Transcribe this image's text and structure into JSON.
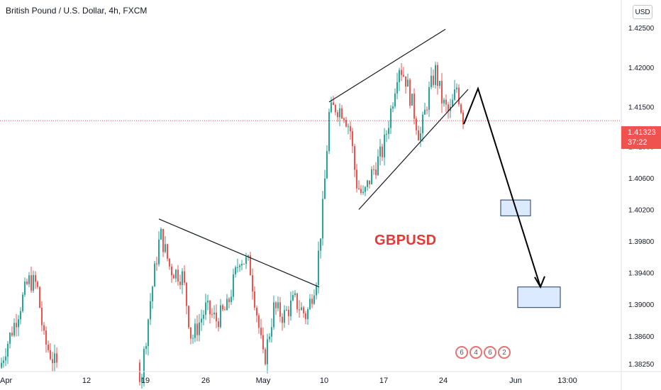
{
  "header": {
    "symbol_title": "British Pound / U.S. Dollar, 4h, FXCM"
  },
  "currency_badge": "USD",
  "last_price": {
    "value": "1.41323",
    "countdown": "37:22",
    "color": "#ef5350"
  },
  "annotation_label": "GBPUSD",
  "economic_events": [
    "6",
    "4",
    "6",
    "2"
  ],
  "colors": {
    "up": "#26a69a",
    "down": "#ef5350",
    "annotation": "#e53935",
    "target_fill": "#dbeafe",
    "target_border": "#1e3a5f"
  },
  "chart_data": {
    "type": "candlestick",
    "symbol": "GBPUSD",
    "timeframe": "4h",
    "y_ticks": [
      "1.42500",
      "1.42000",
      "1.41500",
      "1.41000",
      "1.40600",
      "1.40200",
      "1.39800",
      "1.39400",
      "1.39000",
      "1.38600",
      "1.38250"
    ],
    "x_ticks": [
      "Apr",
      "12",
      "19",
      "26",
      "May",
      "10",
      "17",
      "24",
      "Jun",
      "13:00"
    ],
    "ylim": [
      1.3815,
      1.4285
    ],
    "last_close": 1.41323,
    "close_series": [
      {
        "t": 0,
        "c": 1.382
      },
      {
        "t": 8,
        "c": 1.3845
      },
      {
        "t": 22,
        "c": 1.388
      },
      {
        "t": 40,
        "c": 1.393
      },
      {
        "t": 52,
        "c": 1.3925
      },
      {
        "t": 62,
        "c": 1.3855
      },
      {
        "t": 80,
        "c": 1.382
      },
      {
        "t": 120,
        "c": 1.379
      },
      {
        "t": 200,
        "c": 1.3815
      },
      {
        "t": 212,
        "c": 1.3905
      },
      {
        "t": 226,
        "c": 1.399
      },
      {
        "t": 240,
        "c": 1.3945
      },
      {
        "t": 258,
        "c": 1.3935
      },
      {
        "t": 270,
        "c": 1.3855
      },
      {
        "t": 290,
        "c": 1.3895
      },
      {
        "t": 305,
        "c": 1.388
      },
      {
        "t": 320,
        "c": 1.3895
      },
      {
        "t": 338,
        "c": 1.396
      },
      {
        "t": 352,
        "c": 1.395
      },
      {
        "t": 362,
        "c": 1.389
      },
      {
        "t": 372,
        "c": 1.3825
      },
      {
        "t": 386,
        "c": 1.3895
      },
      {
        "t": 400,
        "c": 1.3885
      },
      {
        "t": 415,
        "c": 1.3905
      },
      {
        "t": 432,
        "c": 1.3885
      },
      {
        "t": 446,
        "c": 1.3935
      },
      {
        "t": 456,
        "c": 1.403
      },
      {
        "t": 464,
        "c": 1.414
      },
      {
        "t": 472,
        "c": 1.415
      },
      {
        "t": 484,
        "c": 1.4145
      },
      {
        "t": 494,
        "c": 1.412
      },
      {
        "t": 502,
        "c": 1.4055
      },
      {
        "t": 512,
        "c": 1.4035
      },
      {
        "t": 524,
        "c": 1.4065
      },
      {
        "t": 540,
        "c": 1.4095
      },
      {
        "t": 552,
        "c": 1.415
      },
      {
        "t": 562,
        "c": 1.4205
      },
      {
        "t": 572,
        "c": 1.4185
      },
      {
        "t": 582,
        "c": 1.415
      },
      {
        "t": 592,
        "c": 1.411
      },
      {
        "t": 604,
        "c": 1.4165
      },
      {
        "t": 614,
        "c": 1.4195
      },
      {
        "t": 624,
        "c": 1.4155
      },
      {
        "t": 634,
        "c": 1.414
      },
      {
        "t": 644,
        "c": 1.4175
      },
      {
        "t": 654,
        "c": 1.4132
      }
    ],
    "trendlines": [
      {
        "name": "upper-channel",
        "from": [
          464,
          1.4156
        ],
        "to": [
          628,
          1.4248
        ]
      },
      {
        "name": "lower-channel",
        "from": [
          506,
          1.402
        ],
        "to": [
          660,
          1.4172
        ]
      },
      {
        "name": "descending-resistance",
        "from": [
          224,
          1.4008
        ],
        "to": [
          450,
          1.3922
        ]
      }
    ],
    "projection_path": [
      [
        654,
        1.4128
      ],
      [
        674,
        1.4173
      ],
      [
        762,
        1.3922
      ]
    ],
    "target_zones": [
      {
        "x0": 706,
        "x1": 748,
        "y0": 1.4012,
        "y1": 1.4032
      },
      {
        "x0": 730,
        "x1": 790,
        "y0": 1.3896,
        "y1": 1.3922
      }
    ]
  }
}
